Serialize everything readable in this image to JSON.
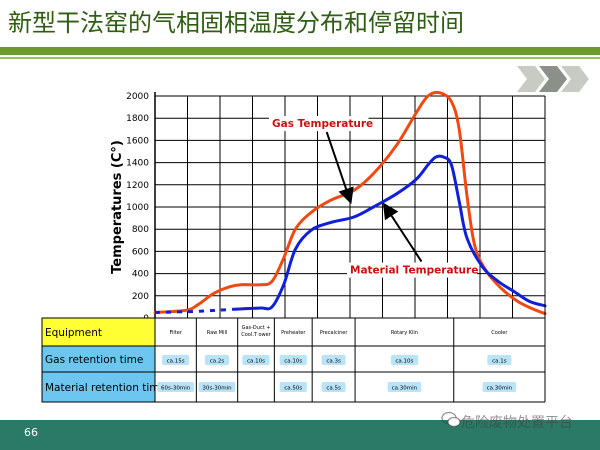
{
  "slide": {
    "title": "新型干法窑的气相固相温度分布和停留时间",
    "page_number": "66",
    "watermark": "危险废物处置平台"
  },
  "colors": {
    "title": "#2f5d13",
    "band": "#6b9b2e",
    "footer": "#2b7a68",
    "gas_series": "#f04a12",
    "material_series": "#1020d8",
    "equipment_header_bg": "#ffff33",
    "retention_header_bg": "#6cc6f0",
    "cell_badge_bg": "#b9e3f7"
  },
  "chart_data": {
    "type": "line",
    "ylabel": "Temperatures (C°)",
    "ylim": [
      0,
      2000
    ],
    "yticks": [
      0,
      200,
      400,
      600,
      800,
      1000,
      1200,
      1400,
      1600,
      1800,
      2000
    ],
    "xlim": [
      0,
      100
    ],
    "grid": true,
    "legend": "annotations",
    "zones": [
      {
        "equipment": "Filter",
        "gas_time": "ca.15s",
        "material_time": "60s-30min",
        "x_end": 10.6
      },
      {
        "equipment": "Raw Mill",
        "gas_time": "ca.2s",
        "material_time": "30s-30min",
        "x_end": 21.2
      },
      {
        "equipment": "Gas-Duct + Cool.T ower",
        "gas_time": "ca.10s",
        "material_time": "",
        "x_end": 30.6
      },
      {
        "equipment": "Preheater",
        "gas_time": "ca.10s",
        "material_time": "ca.50s",
        "x_end": 40.3
      },
      {
        "equipment": "Precalciner",
        "gas_time": "ca.3s",
        "material_time": "ca.5s",
        "x_end": 51.3
      },
      {
        "equipment": "Rotary Kiln",
        "gas_time": "ca.10s",
        "material_time": "ca.30min",
        "x_end": 76.6
      },
      {
        "equipment": "Cooler",
        "gas_time": "ca.1s",
        "material_time": "ca.30min",
        "x_end": 100
      }
    ],
    "series": [
      {
        "name": "Gas Temperature",
        "x": [
          0,
          8,
          11,
          15,
          19,
          22,
          27,
          30,
          33,
          36,
          40,
          45,
          51,
          56,
          62,
          67,
          70,
          73,
          76,
          78,
          80,
          82,
          85,
          89,
          93,
          97,
          100
        ],
        "y": [
          50,
          70,
          120,
          220,
          280,
          300,
          300,
          330,
          540,
          800,
          950,
          1060,
          1150,
          1300,
          1560,
          1850,
          2000,
          2030,
          1950,
          1700,
          1100,
          650,
          420,
          260,
          150,
          80,
          40
        ]
      },
      {
        "name": "Material Temperature",
        "x": [
          0,
          6,
          11,
          16,
          21
        ],
        "y": [
          50,
          55,
          60,
          70,
          80
        ],
        "dashed": true
      },
      {
        "name": "Material Temperature",
        "x": [
          21,
          27,
          30,
          33,
          36,
          40,
          45,
          51,
          56,
          62,
          67,
          70,
          72,
          74,
          76,
          78,
          80,
          84,
          88,
          92,
          96,
          100
        ],
        "y": [
          80,
          90,
          100,
          300,
          620,
          790,
          860,
          910,
          1000,
          1120,
          1250,
          1380,
          1450,
          1450,
          1380,
          1050,
          720,
          460,
          330,
          240,
          150,
          110
        ]
      }
    ],
    "annotations": [
      {
        "text": "Gas Temperature",
        "x": 30,
        "y": 1720,
        "arrow_to": [
          50,
          1060
        ]
      },
      {
        "text": "Material Temperature",
        "x": 50,
        "y": 400,
        "arrow_to": [
          59,
          1010
        ]
      }
    ],
    "table_headers": [
      "Equipment",
      "Gas retention time",
      "Material retention time"
    ]
  }
}
